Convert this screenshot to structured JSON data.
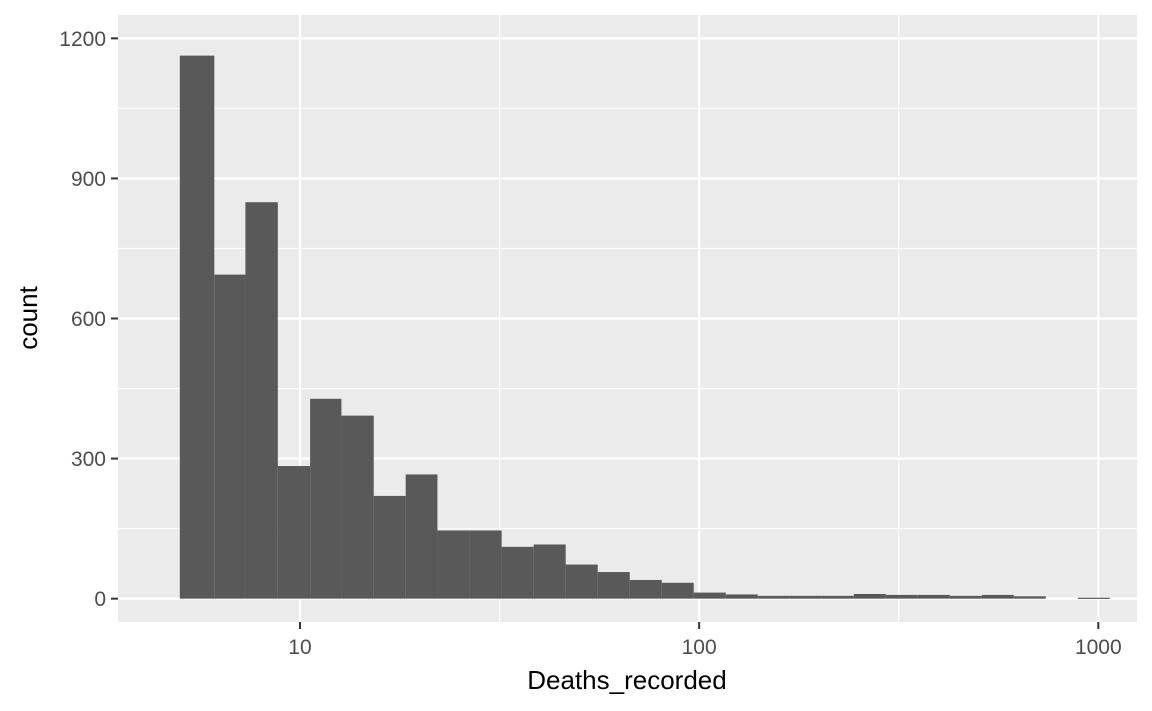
{
  "chart_data": {
    "type": "bar",
    "title": "",
    "xlabel": "Deaths_recorded",
    "ylabel": "count",
    "x_scale": "log10",
    "xlim": [
      3.5,
      1250
    ],
    "ylim": [
      -50,
      1250
    ],
    "x_ticks": [
      10,
      100,
      1000
    ],
    "y_ticks": [
      0,
      300,
      600,
      900,
      1200
    ],
    "grid": true,
    "legend": "none",
    "colors": {
      "bar": "#595959",
      "panel": "#ebebeb",
      "grid": "#ffffff"
    },
    "bins": [
      {
        "x_start": 5.0,
        "x_end": 6.1,
        "count": 1163
      },
      {
        "x_start": 6.1,
        "x_end": 7.3,
        "count": 694
      },
      {
        "x_start": 7.3,
        "x_end": 8.8,
        "count": 849
      },
      {
        "x_start": 8.8,
        "x_end": 10.6,
        "count": 284
      },
      {
        "x_start": 10.6,
        "x_end": 12.7,
        "count": 428
      },
      {
        "x_start": 12.7,
        "x_end": 15.3,
        "count": 392
      },
      {
        "x_start": 15.3,
        "x_end": 18.4,
        "count": 220
      },
      {
        "x_start": 18.4,
        "x_end": 22.1,
        "count": 266
      },
      {
        "x_start": 22.1,
        "x_end": 26.6,
        "count": 146
      },
      {
        "x_start": 26.6,
        "x_end": 32.0,
        "count": 146
      },
      {
        "x_start": 32.0,
        "x_end": 38.5,
        "count": 111
      },
      {
        "x_start": 38.5,
        "x_end": 46.3,
        "count": 116
      },
      {
        "x_start": 46.3,
        "x_end": 55.7,
        "count": 73
      },
      {
        "x_start": 55.7,
        "x_end": 67.0,
        "count": 57
      },
      {
        "x_start": 67.0,
        "x_end": 80.6,
        "count": 40
      },
      {
        "x_start": 80.6,
        "x_end": 96.9,
        "count": 34
      },
      {
        "x_start": 96.9,
        "x_end": 116.6,
        "count": 13
      },
      {
        "x_start": 116.6,
        "x_end": 140.2,
        "count": 9
      },
      {
        "x_start": 140.2,
        "x_end": 168.6,
        "count": 6
      },
      {
        "x_start": 168.6,
        "x_end": 202.8,
        "count": 6
      },
      {
        "x_start": 202.8,
        "x_end": 244.0,
        "count": 6
      },
      {
        "x_start": 244.0,
        "x_end": 293.4,
        "count": 10
      },
      {
        "x_start": 293.4,
        "x_end": 352.9,
        "count": 8
      },
      {
        "x_start": 352.9,
        "x_end": 424.5,
        "count": 8
      },
      {
        "x_start": 424.5,
        "x_end": 510.6,
        "count": 6
      },
      {
        "x_start": 510.6,
        "x_end": 614.1,
        "count": 8
      },
      {
        "x_start": 614.1,
        "x_end": 738.7,
        "count": 5
      },
      {
        "x_start": 738.7,
        "x_end": 888.5,
        "count": 0
      },
      {
        "x_start": 888.5,
        "x_end": 1068.6,
        "count": 2
      }
    ]
  }
}
